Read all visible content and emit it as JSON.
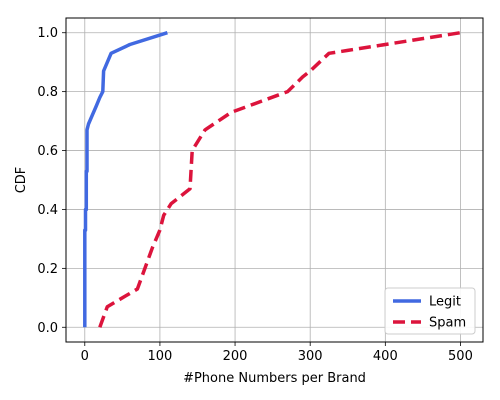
{
  "chart_data": {
    "type": "line",
    "title": "",
    "xlabel": "#Phone Numbers per Brand",
    "ylabel": "CDF",
    "xlim": [
      -25,
      530
    ],
    "ylim": [
      -0.05,
      1.05
    ],
    "xticks": [
      0,
      100,
      200,
      300,
      400,
      500
    ],
    "yticks": [
      0.0,
      0.2,
      0.4,
      0.6,
      0.8,
      1.0
    ],
    "xtick_labels": [
      "0",
      "100",
      "200",
      "300",
      "400",
      "500"
    ],
    "ytick_labels": [
      "0.0",
      "0.2",
      "0.4",
      "0.6",
      "0.8",
      "1.0"
    ],
    "grid": true,
    "legend_position": "bottom-right",
    "series": [
      {
        "name": "Legit",
        "color": "#4169E1",
        "style": "solid",
        "x": [
          0,
          0,
          1,
          1,
          2,
          2,
          3,
          3,
          5,
          10,
          15,
          20,
          24,
          24,
          25,
          35,
          60,
          110
        ],
        "y": [
          0.0,
          0.33,
          0.33,
          0.4,
          0.4,
          0.53,
          0.53,
          0.67,
          0.69,
          0.72,
          0.75,
          0.78,
          0.8,
          0.8,
          0.87,
          0.93,
          0.96,
          1.0
        ]
      },
      {
        "name": "Spam",
        "color": "#DC143C",
        "style": "dashed",
        "x": [
          20,
          30,
          70,
          90,
          100,
          105,
          115,
          125,
          140,
          143,
          160,
          195,
          270,
          290,
          300,
          325,
          350,
          500
        ],
        "y": [
          0.0,
          0.07,
          0.13,
          0.27,
          0.33,
          0.38,
          0.42,
          0.44,
          0.47,
          0.6,
          0.67,
          0.73,
          0.8,
          0.85,
          0.87,
          0.93,
          0.94,
          1.0
        ]
      }
    ]
  }
}
